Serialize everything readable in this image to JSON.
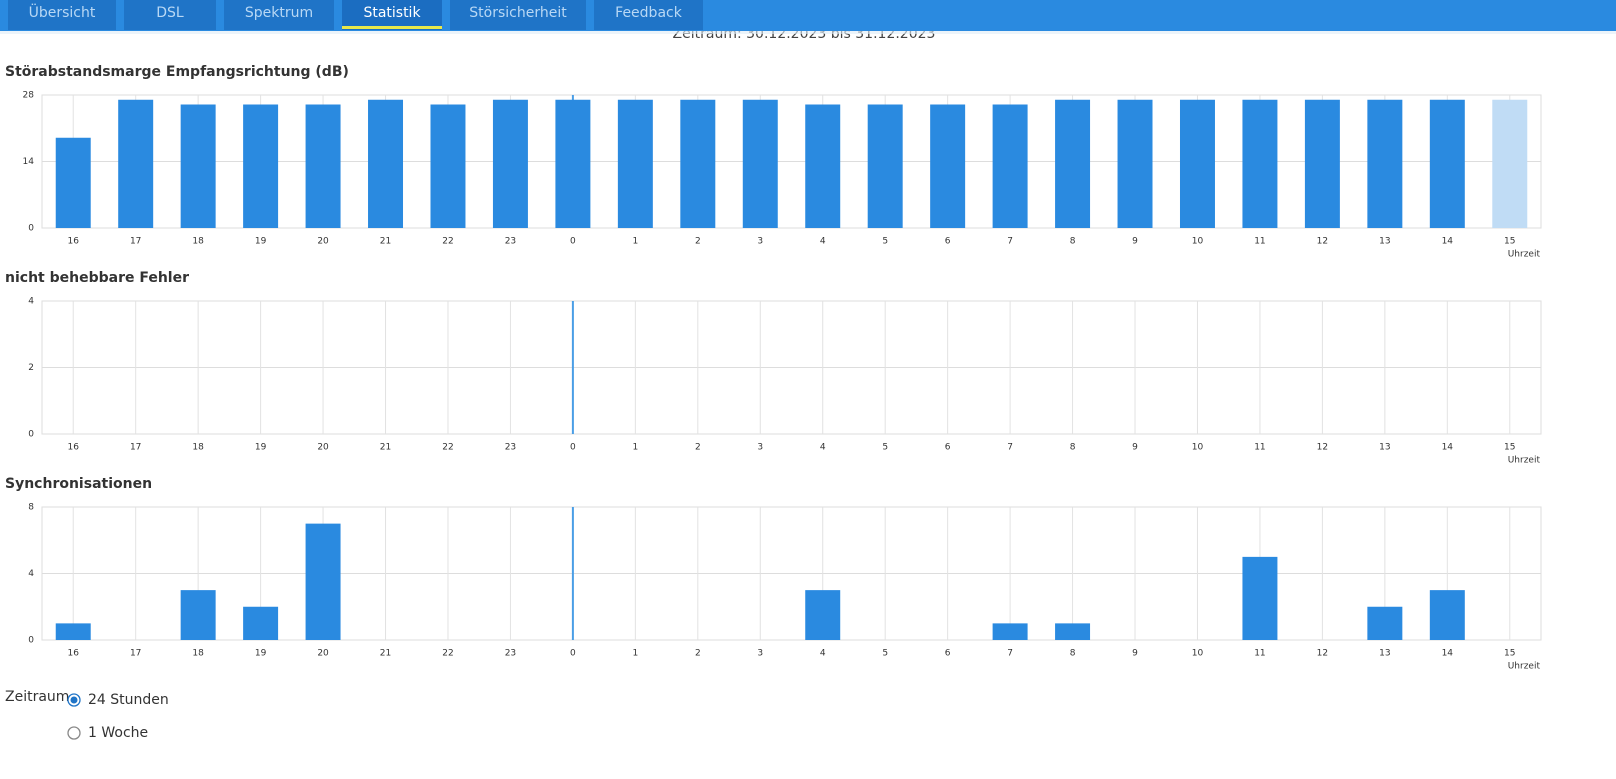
{
  "tabs": [
    "Übersicht",
    "DSL",
    "Spektrum",
    "Statistik",
    "Störsicherheit",
    "Feedback"
  ],
  "active_tab": 3,
  "period": "Zeitraum: 30.12.2023 bis 31.12.2023",
  "chart_data": [
    {
      "type": "bar",
      "title": "Störabstandsmarge Empfangsrichtung (dB)",
      "categories": [
        "16",
        "17",
        "18",
        "19",
        "20",
        "21",
        "22",
        "23",
        "0",
        "1",
        "2",
        "3",
        "4",
        "5",
        "6",
        "7",
        "8",
        "9",
        "10",
        "11",
        "12",
        "13",
        "14",
        "15"
      ],
      "values": [
        19,
        27,
        26,
        26,
        26,
        27,
        26,
        27,
        27,
        27,
        27,
        27,
        26,
        26,
        26,
        26,
        27,
        27,
        27,
        27,
        27,
        27,
        27,
        27
      ],
      "colors": [
        "#2a8ae0",
        "#2a8ae0",
        "#2a8ae0",
        "#2a8ae0",
        "#2a8ae0",
        "#2a8ae0",
        "#2a8ae0",
        "#2a8ae0",
        "#2a8ae0",
        "#2a8ae0",
        "#2a8ae0",
        "#2a8ae0",
        "#2a8ae0",
        "#2a8ae0",
        "#2a8ae0",
        "#2a8ae0",
        "#2a8ae0",
        "#2a8ae0",
        "#2a8ae0",
        "#2a8ae0",
        "#2a8ae0",
        "#2a8ae0",
        "#2a8ae0",
        "#c0dcf5"
      ],
      "ylim": [
        0,
        28
      ],
      "yticks": [
        0,
        14,
        28
      ],
      "xlabel": "Uhrzeit",
      "grid": true
    },
    {
      "type": "bar",
      "title": "nicht behebbare Fehler",
      "categories": [
        "16",
        "17",
        "18",
        "19",
        "20",
        "21",
        "22",
        "23",
        "0",
        "1",
        "2",
        "3",
        "4",
        "5",
        "6",
        "7",
        "8",
        "9",
        "10",
        "11",
        "12",
        "13",
        "14",
        "15"
      ],
      "values": [
        0,
        0,
        0,
        0,
        0,
        0,
        0,
        0,
        0,
        0,
        0,
        0,
        0,
        0,
        0,
        0,
        0,
        0,
        0,
        0,
        0,
        0,
        0,
        0
      ],
      "color": "#2a8ae0",
      "ylim": [
        0,
        4
      ],
      "yticks": [
        0,
        2,
        4
      ],
      "xlabel": "Uhrzeit",
      "grid": true
    },
    {
      "type": "bar",
      "title": "Synchronisationen",
      "categories": [
        "16",
        "17",
        "18",
        "19",
        "20",
        "21",
        "22",
        "23",
        "0",
        "1",
        "2",
        "3",
        "4",
        "5",
        "6",
        "7",
        "8",
        "9",
        "10",
        "11",
        "12",
        "13",
        "14",
        "15"
      ],
      "values": [
        1,
        0,
        3,
        2,
        7,
        0,
        0,
        0,
        0,
        0,
        0,
        0,
        3,
        0,
        0,
        1,
        1,
        0,
        0,
        5,
        0,
        2,
        3,
        0
      ],
      "color": "#2a8ae0",
      "ylim": [
        0,
        8
      ],
      "yticks": [
        0,
        4,
        8
      ],
      "xlabel": "Uhrzeit",
      "grid": true
    }
  ],
  "filter": {
    "label": "Zeitraum",
    "options": [
      "24 Stunden",
      "1 Woche"
    ],
    "selected": 0
  }
}
